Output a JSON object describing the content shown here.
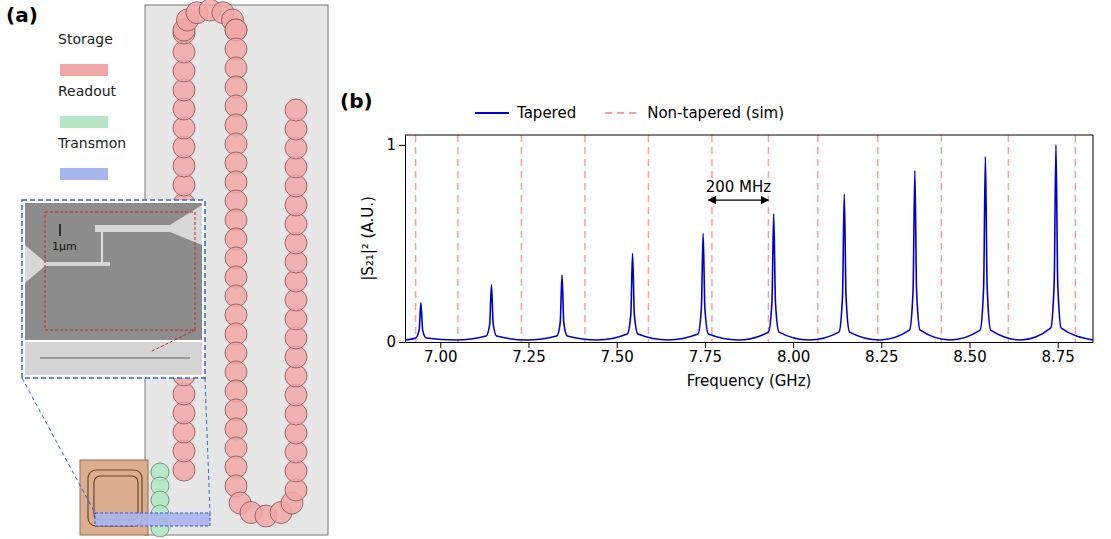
{
  "chart_data": {
    "type": "line",
    "panel": "(b)",
    "x_label": "Frequency (GHz)",
    "y_label": "|S₂₁|² (A.U.)",
    "xlim": [
      6.9,
      8.85
    ],
    "ylim": [
      0,
      1.05
    ],
    "xticks": [
      {
        "value": 7,
        "label": "7.00"
      },
      {
        "value": 7.25,
        "label": "7.25"
      },
      {
        "value": 7.5,
        "label": "7.50"
      },
      {
        "value": 7.75,
        "label": "7.75"
      },
      {
        "value": 8,
        "label": "8.00"
      },
      {
        "value": 8.25,
        "label": "8.25"
      },
      {
        "value": 8.5,
        "label": "8.50"
      },
      {
        "value": 8.75,
        "label": "8.75"
      }
    ],
    "yticks": [
      0,
      1
    ],
    "grid": false,
    "legend": "top",
    "series": [
      {
        "name": "Tapered",
        "color": "#0000cd",
        "type": "line",
        "line_style": "solid",
        "x": [
          6.9,
          6.93,
          6.94,
          6.945,
          6.95,
          6.96,
          7.045,
          7.13,
          7.14,
          7.145,
          7.15,
          7.16,
          7.245,
          7.33,
          7.34,
          7.345,
          7.35,
          7.36,
          7.445,
          7.53,
          7.54,
          7.545,
          7.55,
          7.56,
          7.645,
          7.73,
          7.74,
          7.745,
          7.75,
          7.76,
          7.845,
          7.93,
          7.94,
          7.945,
          7.95,
          7.96,
          8.045,
          8.13,
          8.14,
          8.145,
          8.15,
          8.16,
          8.245,
          8.33,
          8.34,
          8.345,
          8.35,
          8.36,
          8.445,
          8.53,
          8.54,
          8.545,
          8.55,
          8.56,
          8.645,
          8.73,
          8.74,
          8.745,
          8.75,
          8.76,
          8.85
        ],
        "values": [
          0.01,
          0.02,
          0.06,
          0.2,
          0.06,
          0.02,
          0.01,
          0.03,
          0.09,
          0.29,
          0.09,
          0.03,
          0.01,
          0.03,
          0.1,
          0.34,
          0.1,
          0.03,
          0.01,
          0.04,
          0.14,
          0.45,
          0.14,
          0.04,
          0.01,
          0.04,
          0.17,
          0.55,
          0.17,
          0.04,
          0.01,
          0.05,
          0.2,
          0.65,
          0.2,
          0.05,
          0.01,
          0.05,
          0.23,
          0.75,
          0.23,
          0.05,
          0.01,
          0.06,
          0.26,
          0.87,
          0.26,
          0.06,
          0.01,
          0.06,
          0.28,
          0.94,
          0.28,
          0.06,
          0.01,
          0.07,
          0.3,
          1.0,
          0.3,
          0.07,
          0.01
        ]
      },
      {
        "name": "Non-tapered (sim)",
        "color": "#f4a0a0",
        "type": "vline",
        "line_style": "dashed",
        "x": [
          6.93,
          7.05,
          7.23,
          7.41,
          7.59,
          7.77,
          7.93,
          8.07,
          8.24,
          8.42,
          8.61,
          8.8
        ]
      }
    ],
    "annotations": [
      {
        "text": "200 MHz",
        "x": [
          7.76,
          7.93
        ],
        "y": 0.72
      }
    ]
  },
  "diagram": {
    "label": "(a)",
    "legend": [
      {
        "name": "Storage",
        "color": "#f2a7a7"
      },
      {
        "name": "Readout",
        "color": "#b5e5c5"
      },
      {
        "name": "Transmon",
        "color": "#a8b6ee"
      }
    ],
    "scale_bar": "1μm"
  }
}
